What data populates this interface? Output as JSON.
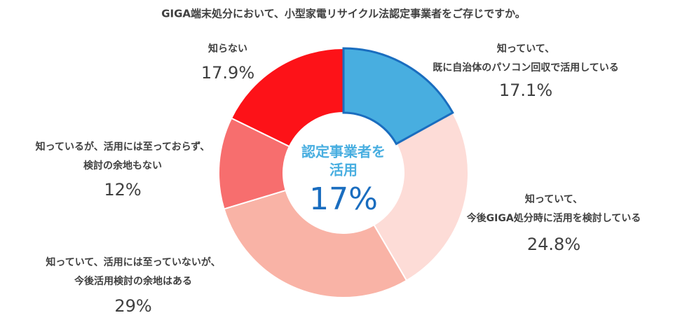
{
  "chart_data": {
    "type": "pie",
    "donut": true,
    "title": "GIGA端末処分において、小型家電リサイクル法認定事業者をご存じですか。",
    "categories": [
      [
        "知っていて、",
        "既に自治体のパソコン回収で活用している"
      ],
      [
        "知っていて、",
        "今後GIGA処分時に活用を検討している"
      ],
      [
        "知っていて、活用には至っていないが、",
        "今後活用検討の余地はある"
      ],
      [
        "知っているが、活用には至っておらず、",
        "検討の余地もない"
      ],
      [
        "知らない"
      ]
    ],
    "values": [
      17.1,
      24.8,
      29,
      12,
      17.9
    ],
    "value_labels": [
      "17.1%",
      "24.8%",
      "29%",
      "12%",
      "17.9%"
    ],
    "colors": [
      "#48aee0",
      "#fddcd7",
      "#f9b3a6",
      "#f76e6e",
      "#fd1218"
    ],
    "outline_colors": [
      "#1a6dbf",
      "#ffffff",
      "#ffffff",
      "#ffffff",
      "#ffffff"
    ],
    "center_text": [
      "認定事業者を",
      "活用"
    ],
    "center_value_label": "17%"
  }
}
